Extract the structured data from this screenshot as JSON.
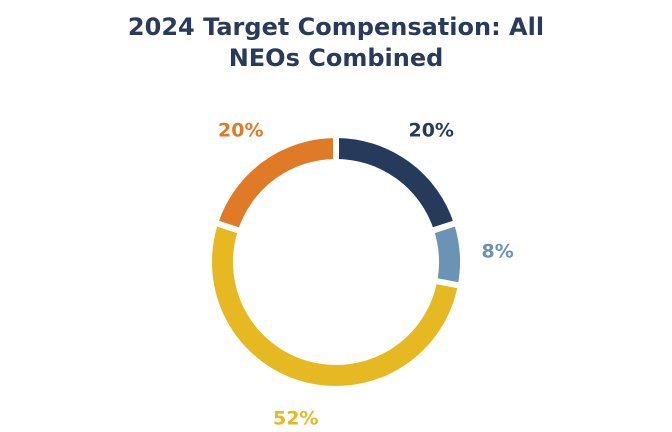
{
  "chart_data": {
    "type": "donut",
    "title": "2024 Target Compensation: All NEOs Combined",
    "values": [
      20,
      8,
      52,
      20
    ],
    "value_labels": [
      "20%",
      "8%",
      "52%",
      "20%"
    ],
    "colors": [
      "#263a5c",
      "#6b93b4",
      "#e6b923",
      "#e07a27"
    ]
  }
}
